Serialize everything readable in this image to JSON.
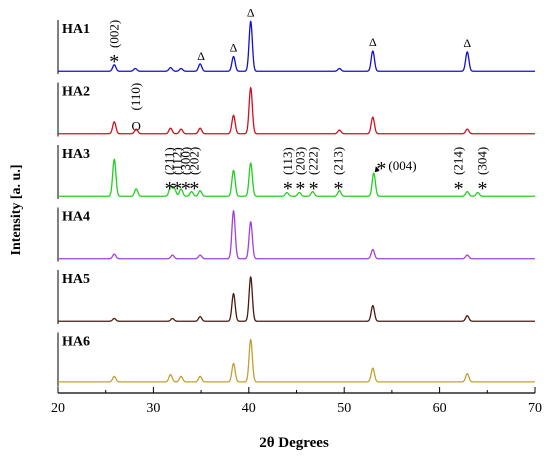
{
  "chart_data": {
    "type": "line",
    "xlabel": "2θ Degrees",
    "ylabel": "Intensity [a. u.]",
    "xlim": [
      20,
      70
    ],
    "xticks": [
      20,
      30,
      40,
      50,
      60,
      70
    ],
    "grid": false,
    "series": [
      {
        "name": "HA1",
        "color": "#1010d0",
        "baseline": 0.03,
        "peaks": [
          [
            25.9,
            0.07
          ],
          [
            28.1,
            0.03
          ],
          [
            31.8,
            0.04
          ],
          [
            32.9,
            0.03
          ],
          [
            34.9,
            0.08
          ],
          [
            38.4,
            0.16
          ],
          [
            40.2,
            0.54
          ],
          [
            49.5,
            0.03
          ],
          [
            53.0,
            0.22
          ],
          [
            62.9,
            0.21
          ]
        ]
      },
      {
        "name": "HA2",
        "color": "#d01020",
        "baseline": 0.03,
        "peaks": [
          [
            25.9,
            0.13
          ],
          [
            28.2,
            0.05
          ],
          [
            31.8,
            0.06
          ],
          [
            32.9,
            0.05
          ],
          [
            34.9,
            0.06
          ],
          [
            38.4,
            0.2
          ],
          [
            40.2,
            0.5
          ],
          [
            49.5,
            0.04
          ],
          [
            53.0,
            0.18
          ],
          [
            62.9,
            0.05
          ]
        ]
      },
      {
        "name": "HA3",
        "color": "#20d020",
        "baseline": 0.03,
        "peaks": [
          [
            25.9,
            0.4
          ],
          [
            28.2,
            0.08
          ],
          [
            31.8,
            0.1
          ],
          [
            32.2,
            0.08
          ],
          [
            32.9,
            0.08
          ],
          [
            34.0,
            0.05
          ],
          [
            34.9,
            0.06
          ],
          [
            38.4,
            0.28
          ],
          [
            40.2,
            0.36
          ],
          [
            44.0,
            0.04
          ],
          [
            45.3,
            0.04
          ],
          [
            46.7,
            0.05
          ],
          [
            49.5,
            0.06
          ],
          [
            53.1,
            0.25
          ],
          [
            62.9,
            0.05
          ],
          [
            64.0,
            0.04
          ]
        ]
      },
      {
        "name": "HA4",
        "color": "#a040e0",
        "baseline": 0.03,
        "peaks": [
          [
            25.9,
            0.05
          ],
          [
            32.0,
            0.04
          ],
          [
            34.9,
            0.04
          ],
          [
            38.4,
            0.52
          ],
          [
            40.2,
            0.4
          ],
          [
            53.0,
            0.1
          ],
          [
            62.9,
            0.04
          ]
        ]
      },
      {
        "name": "HA5",
        "color": "#4a1a10",
        "baseline": 0.03,
        "peaks": [
          [
            25.9,
            0.03
          ],
          [
            32.0,
            0.03
          ],
          [
            34.9,
            0.05
          ],
          [
            38.4,
            0.3
          ],
          [
            40.2,
            0.48
          ],
          [
            53.0,
            0.17
          ],
          [
            62.9,
            0.06
          ]
        ]
      },
      {
        "name": "HA6",
        "color": "#c0a030",
        "baseline": 0.05,
        "peaks": [
          [
            25.9,
            0.06
          ],
          [
            31.8,
            0.08
          ],
          [
            32.9,
            0.06
          ],
          [
            34.9,
            0.06
          ],
          [
            38.4,
            0.2
          ],
          [
            40.2,
            0.46
          ],
          [
            53.0,
            0.15
          ],
          [
            62.9,
            0.09
          ]
        ]
      }
    ],
    "annotations": [
      {
        "series": "HA1",
        "text": "(002)",
        "x": 25.9,
        "symbol": "*",
        "rotate": true
      },
      {
        "series": "HA1",
        "text": "",
        "x": 35.0,
        "symbol": "Δ",
        "rotate": false
      },
      {
        "series": "HA1",
        "text": "",
        "x": 38.4,
        "symbol": "Δ",
        "rotate": false
      },
      {
        "series": "HA1",
        "text": "",
        "x": 40.2,
        "symbol": "Δ",
        "rotate": false
      },
      {
        "series": "HA1",
        "text": "",
        "x": 53.0,
        "symbol": "Δ",
        "rotate": false
      },
      {
        "series": "HA1",
        "text": "",
        "x": 62.9,
        "symbol": "Δ",
        "rotate": false
      },
      {
        "series": "HA2",
        "text": "(110)",
        "x": 28.2,
        "symbol": "O",
        "rotate": true
      },
      {
        "series": "HA3",
        "text": "(211)",
        "x": 31.7,
        "symbol": "*",
        "rotate": true
      },
      {
        "series": "HA3",
        "text": "(112)",
        "x": 32.5,
        "symbol": "*",
        "rotate": true
      },
      {
        "series": "HA3",
        "text": "(300)",
        "x": 33.4,
        "symbol": "*",
        "rotate": true
      },
      {
        "series": "HA3",
        "text": "(202)",
        "x": 34.3,
        "symbol": "*",
        "rotate": true
      },
      {
        "series": "HA3",
        "text": "(113)",
        "x": 44.1,
        "symbol": "*",
        "rotate": true
      },
      {
        "series": "HA3",
        "text": "(203)",
        "x": 45.4,
        "symbol": "*",
        "rotate": true
      },
      {
        "series": "HA3",
        "text": "(222)",
        "x": 46.8,
        "symbol": "*",
        "rotate": true
      },
      {
        "series": "HA3",
        "text": "(213)",
        "x": 49.4,
        "symbol": "*",
        "rotate": true
      },
      {
        "series": "HA3",
        "text": "(004)",
        "x": 53.9,
        "symbol": "*",
        "rotate": false,
        "arrow_to": 53.1
      },
      {
        "series": "HA3",
        "text": "(214)",
        "x": 62.0,
        "symbol": "*",
        "rotate": true
      },
      {
        "series": "HA3",
        "text": "(304)",
        "x": 64.5,
        "symbol": "*",
        "rotate": true
      }
    ]
  }
}
